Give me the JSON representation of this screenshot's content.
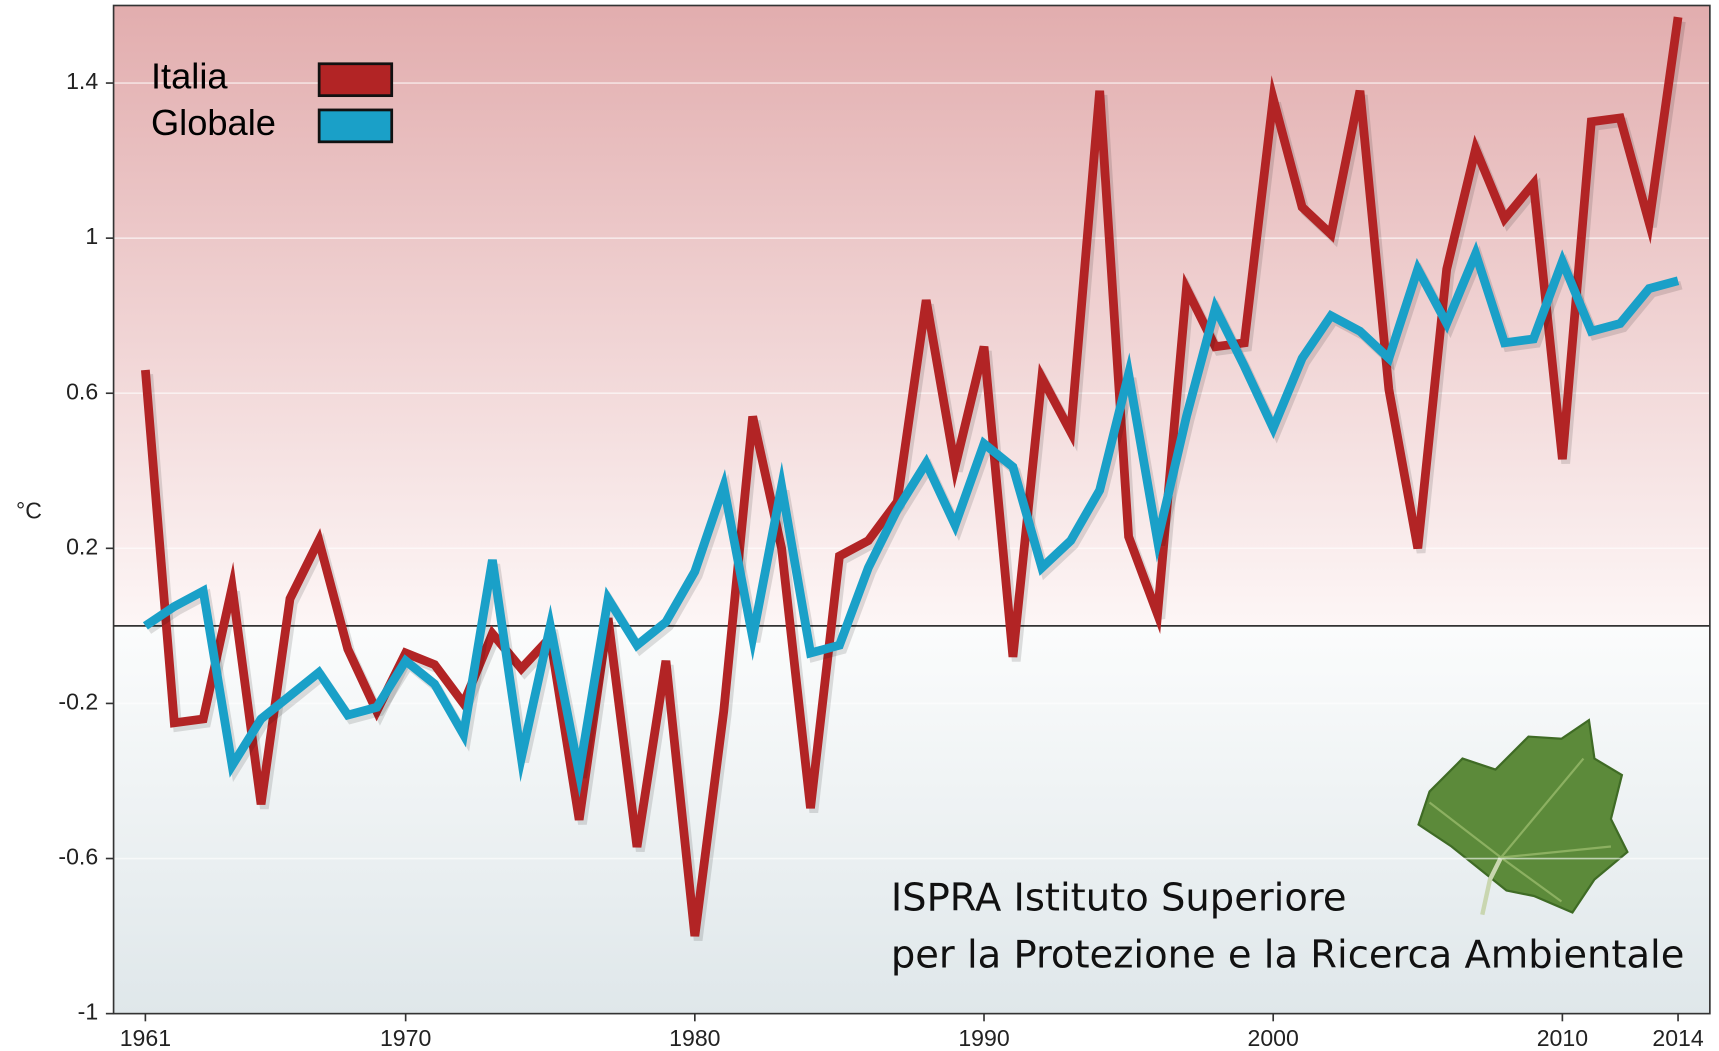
{
  "chart_data": {
    "type": "line",
    "y_label": "°C",
    "annotations": [
      "ISPRA Istituto Superiore",
      "per la Protezione e la Ricerca Ambientale"
    ],
    "x": [
      1961,
      1962,
      1963,
      1964,
      1965,
      1966,
      1967,
      1968,
      1969,
      1970,
      1971,
      1972,
      1973,
      1974,
      1975,
      1976,
      1977,
      1978,
      1979,
      1980,
      1981,
      1982,
      1983,
      1984,
      1985,
      1986,
      1987,
      1988,
      1989,
      1990,
      1991,
      1992,
      1993,
      1994,
      1995,
      1996,
      1997,
      1998,
      1999,
      2000,
      2001,
      2002,
      2003,
      2004,
      2005,
      2006,
      2007,
      2008,
      2009,
      2010,
      2011,
      2012,
      2013,
      2014
    ],
    "series": [
      {
        "name": "Italia",
        "color": "#b22425",
        "values": [
          0.66,
          -0.25,
          -0.24,
          0.1,
          -0.46,
          0.07,
          0.22,
          -0.06,
          -0.22,
          -0.07,
          -0.1,
          -0.2,
          -0.02,
          -0.11,
          -0.03,
          -0.5,
          0.02,
          -0.57,
          -0.09,
          -0.8,
          -0.22,
          0.54,
          0.2,
          -0.47,
          0.18,
          0.22,
          0.32,
          0.84,
          0.41,
          0.72,
          -0.08,
          0.64,
          0.5,
          1.38,
          0.23,
          0.03,
          0.87,
          0.72,
          0.73,
          1.36,
          1.08,
          1.01,
          1.38,
          0.61,
          0.2,
          0.92,
          1.23,
          1.05,
          1.14,
          0.43,
          1.3,
          1.31,
          1.04,
          1.57
        ]
      },
      {
        "name": "Globale",
        "color": "#1aa0c8",
        "values": [
          0.0,
          0.05,
          0.09,
          -0.36,
          -0.24,
          -0.18,
          -0.12,
          -0.23,
          -0.21,
          -0.09,
          -0.15,
          -0.28,
          0.17,
          -0.34,
          0.0,
          -0.38,
          0.07,
          -0.05,
          0.01,
          0.14,
          0.36,
          -0.03,
          0.36,
          -0.07,
          -0.05,
          0.15,
          0.3,
          0.42,
          0.26,
          0.47,
          0.41,
          0.15,
          0.22,
          0.35,
          0.65,
          0.22,
          0.54,
          0.82,
          0.67,
          0.51,
          0.69,
          0.8,
          0.76,
          0.69,
          0.92,
          0.78,
          0.96,
          0.73,
          0.74,
          0.94,
          0.76,
          0.78,
          0.87,
          0.89
        ]
      }
    ],
    "xlim": [
      1959.9,
      2015.1
    ],
    "xticks": [
      1961,
      1970,
      1980,
      1990,
      2000,
      2010,
      2014
    ],
    "ylim": [
      -1,
      1.6
    ],
    "yticks": [
      -1,
      -0.6,
      -0.2,
      0.2,
      0.6,
      1,
      1.4
    ],
    "reference_line": 0,
    "grid": true,
    "legend": "upper left"
  }
}
